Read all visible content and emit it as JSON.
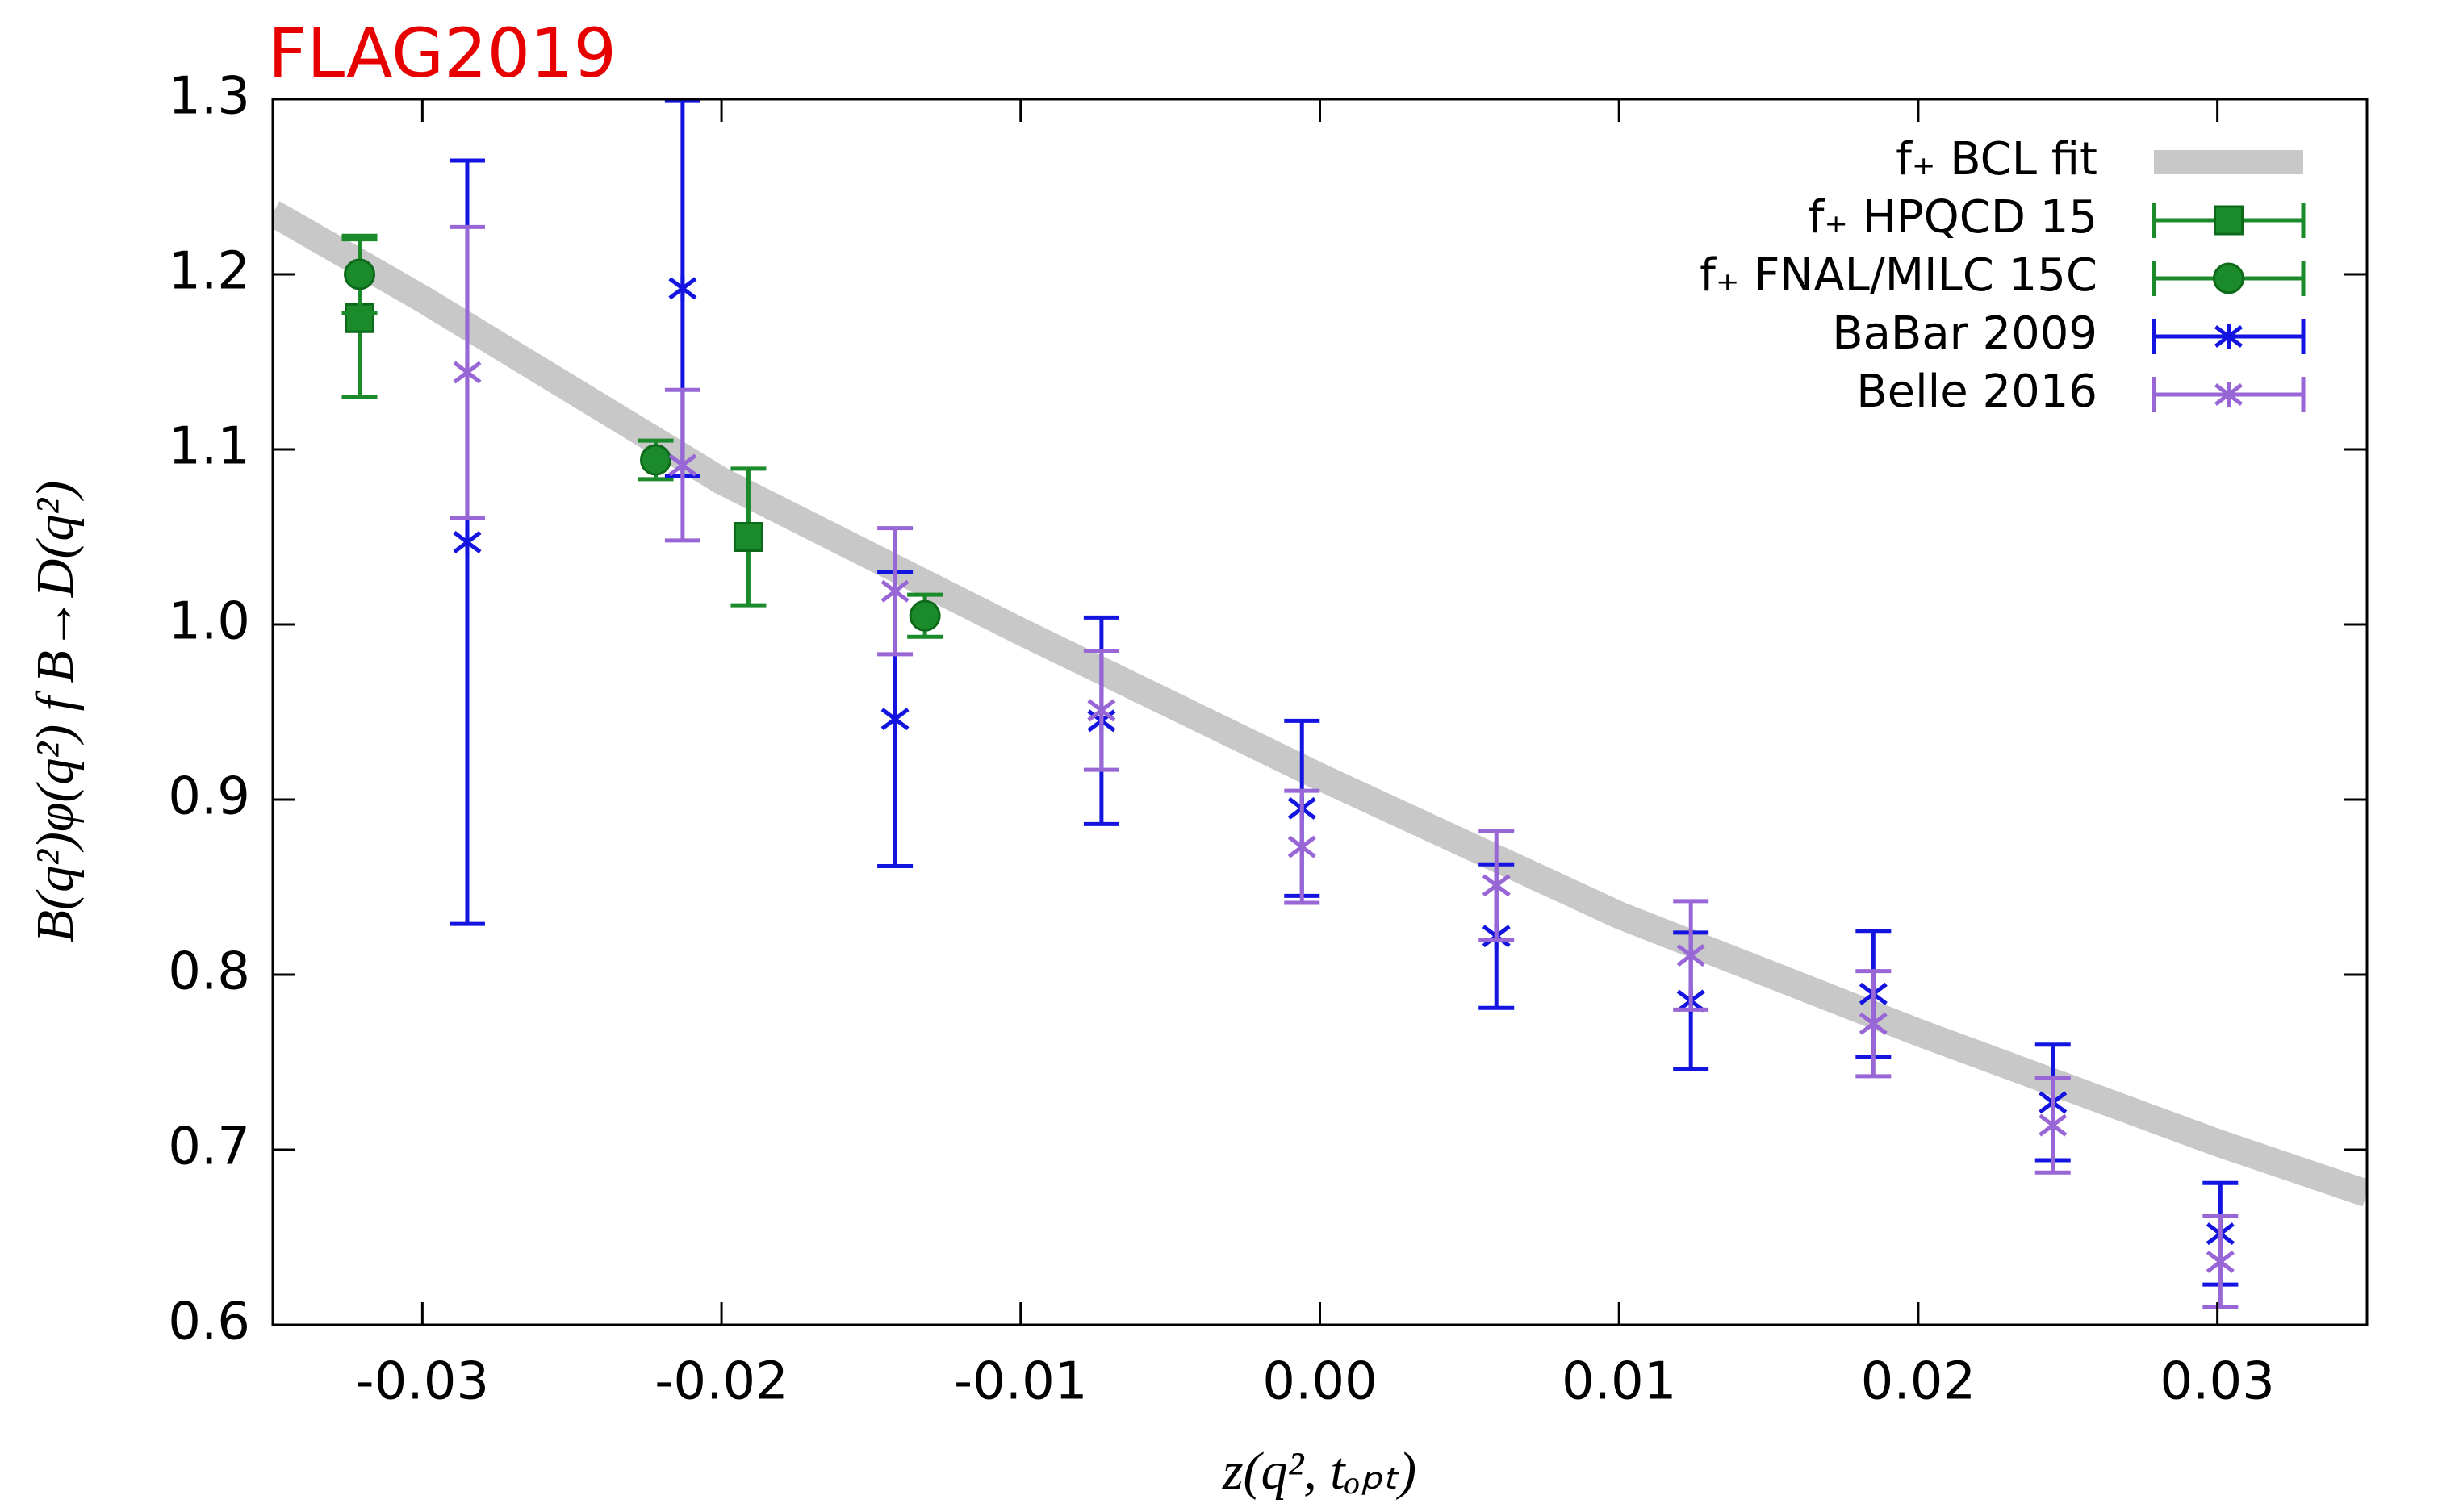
{
  "chart_data": {
    "type": "errorbar",
    "title": "FLAG2019",
    "xlabel": "z(q², tₒₚₜ)",
    "ylabel": "B(q²)φ(q²) f B→D(q²)",
    "xlim": [
      -0.035,
      0.035
    ],
    "ylim": [
      0.6,
      1.3
    ],
    "xticks": [
      -0.03,
      -0.02,
      -0.01,
      {
        "value": 0,
        "label": "0.00"
      },
      0.01,
      0.02,
      0.03
    ],
    "yticks": [
      0.6,
      0.7,
      0.8,
      0.9,
      {
        "value": 1,
        "label": "1.0"
      },
      1.1,
      1.2,
      1.3
    ],
    "legend": "top-right",
    "series": [
      {
        "name": "f₊ BCL fit",
        "type": "band",
        "color": "#c8c8c8",
        "x": [
          -0.035,
          -0.03,
          -0.02,
          -0.01,
          0,
          0.01,
          0.02,
          0.03,
          0.035
        ],
        "values": [
          1.235,
          1.186,
          1.082,
          0.996,
          0.913,
          0.834,
          0.767,
          0.704,
          0.675
        ]
      },
      {
        "name": "f₊ HPQCD 15",
        "marker": "square",
        "color": "#1a8a2a",
        "x": [
          -0.0321,
          -0.0191
        ],
        "values": [
          1.175,
          1.05
        ],
        "errors": [
          0.045,
          0.039
        ]
      },
      {
        "name": "f₊ FNAL/MILC 15C",
        "marker": "circle",
        "color": "#1a8a2a",
        "x": [
          -0.0321,
          -0.0222,
          -0.0132
        ],
        "values": [
          1.2,
          1.094,
          1.005
        ],
        "errors": [
          0.022,
          0.011,
          0.012
        ]
      },
      {
        "name": "BaBar 2009",
        "marker": "star",
        "color": "#1414e0",
        "x": [
          -0.0285,
          -0.0213,
          -0.0142,
          -0.0073,
          -0.0006,
          0.0059,
          0.0124,
          0.0185,
          0.0245,
          0.0301
        ],
        "values": [
          1.047,
          1.192,
          0.946,
          0.945,
          0.895,
          0.822,
          0.785,
          0.789,
          0.727,
          0.652
        ],
        "errors": [
          0.218,
          0.107,
          0.084,
          0.059,
          0.05,
          0.041,
          0.039,
          0.036,
          0.033,
          0.029
        ]
      },
      {
        "name": "Belle 2016",
        "marker": "star",
        "color": "#9966d6",
        "x": [
          -0.0285,
          -0.0213,
          -0.0142,
          -0.0073,
          -0.0006,
          0.0059,
          0.0124,
          0.0185,
          0.0245,
          0.0301
        ],
        "values": [
          1.144,
          1.091,
          1.019,
          0.951,
          0.873,
          0.851,
          0.811,
          0.772,
          0.714,
          0.636
        ],
        "errors": [
          0.083,
          0.043,
          0.036,
          0.034,
          0.032,
          0.031,
          0.031,
          0.03,
          0.027,
          0.026
        ]
      }
    ]
  }
}
